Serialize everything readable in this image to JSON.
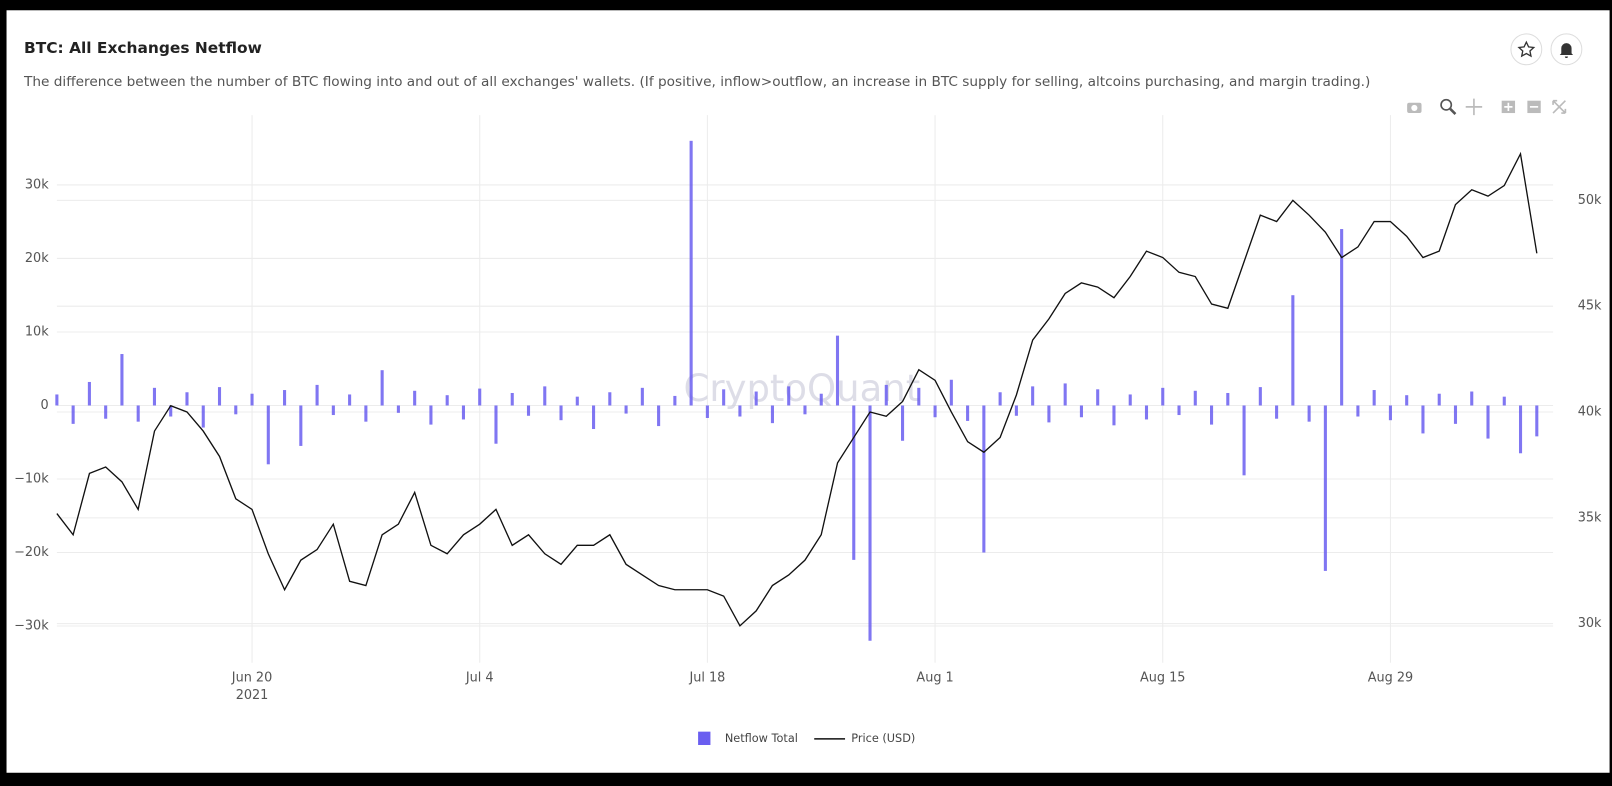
{
  "chart_data": {
    "type": "bar",
    "title": "BTC: All Exchanges Netflow",
    "subtitle": "The difference between the number of BTC flowing into and out of all exchanges' wallets. (If positive, inflow>outflow, an increase in BTC supply for selling, altcoins purchasing, and margin trading.)",
    "watermark": "CryptoQuant",
    "x": [
      "2021-06-08",
      "2021-06-09",
      "2021-06-10",
      "2021-06-11",
      "2021-06-12",
      "2021-06-13",
      "2021-06-14",
      "2021-06-15",
      "2021-06-16",
      "2021-06-17",
      "2021-06-18",
      "2021-06-19",
      "2021-06-20",
      "2021-06-21",
      "2021-06-22",
      "2021-06-23",
      "2021-06-24",
      "2021-06-25",
      "2021-06-26",
      "2021-06-27",
      "2021-06-28",
      "2021-06-29",
      "2021-06-30",
      "2021-07-01",
      "2021-07-02",
      "2021-07-03",
      "2021-07-04",
      "2021-07-05",
      "2021-07-06",
      "2021-07-07",
      "2021-07-08",
      "2021-07-09",
      "2021-07-10",
      "2021-07-11",
      "2021-07-12",
      "2021-07-13",
      "2021-07-14",
      "2021-07-15",
      "2021-07-16",
      "2021-07-17",
      "2021-07-18",
      "2021-07-19",
      "2021-07-20",
      "2021-07-21",
      "2021-07-22",
      "2021-07-23",
      "2021-07-24",
      "2021-07-25",
      "2021-07-26",
      "2021-07-27",
      "2021-07-28",
      "2021-07-29",
      "2021-07-30",
      "2021-07-31",
      "2021-08-01",
      "2021-08-02",
      "2021-08-03",
      "2021-08-04",
      "2021-08-05",
      "2021-08-06",
      "2021-08-07",
      "2021-08-08",
      "2021-08-09",
      "2021-08-10",
      "2021-08-11",
      "2021-08-12",
      "2021-08-13",
      "2021-08-14",
      "2021-08-15",
      "2021-08-16",
      "2021-08-17",
      "2021-08-18",
      "2021-08-19",
      "2021-08-20",
      "2021-08-21",
      "2021-08-22",
      "2021-08-23",
      "2021-08-24",
      "2021-08-25",
      "2021-08-26",
      "2021-08-27",
      "2021-08-28",
      "2021-08-29",
      "2021-08-30",
      "2021-08-31",
      "2021-09-01",
      "2021-09-02",
      "2021-09-03",
      "2021-09-04",
      "2021-09-05",
      "2021-09-06",
      "2021-09-07"
    ],
    "series": [
      {
        "name": "Netflow Total",
        "type": "bar",
        "color": "#6a5ef0",
        "values": [
          1500,
          -2500,
          3200,
          -1800,
          7000,
          -2200,
          2400,
          -1500,
          1800,
          -3000,
          2500,
          -1200,
          1600,
          -8000,
          2100,
          -5500,
          2800,
          -1300,
          1500,
          -2200,
          4800,
          -1000,
          2000,
          -2600,
          1400,
          -1900,
          2300,
          -5200,
          1700,
          -1400,
          2600,
          -2000,
          1200,
          -3200,
          1800,
          -1100,
          2400,
          -2800,
          1300,
          36000,
          -1700,
          2200,
          -1500,
          1900,
          -2400,
          2600,
          -1200,
          1600,
          9500,
          -21000,
          -32000,
          2800,
          -4800,
          2400,
          -1600,
          3500,
          -2100,
          -20000,
          1800,
          -1400,
          2600,
          -2300,
          3000,
          -1600,
          2200,
          -2700,
          1500,
          -1900,
          2400,
          -1300,
          2000,
          -2600,
          1700,
          -9500,
          2500,
          -1800,
          15000,
          -2200,
          -22500,
          24000,
          -1500,
          2100,
          -2000,
          1400,
          -3800,
          1600,
          -2500,
          1900,
          -4500,
          1200,
          -6500,
          -4200
        ]
      },
      {
        "name": "Price (USD)",
        "type": "line",
        "axis": "y2",
        "color": "#111111",
        "values": [
          35200,
          34200,
          37100,
          37400,
          36700,
          35400,
          39100,
          40300,
          40000,
          39100,
          37900,
          35900,
          35400,
          33300,
          31600,
          33000,
          33500,
          34700,
          32000,
          31800,
          34200,
          34700,
          36200,
          33700,
          33300,
          34200,
          34700,
          35400,
          33700,
          34200,
          33300,
          32800,
          33700,
          33700,
          34200,
          32800,
          32300,
          31800,
          31600,
          31600,
          31600,
          31300,
          29900,
          30600,
          31800,
          32300,
          33000,
          34200,
          37600,
          38800,
          40000,
          39800,
          40500,
          42000,
          41500,
          40000,
          38600,
          38100,
          38800,
          40800,
          43400,
          44400,
          45600,
          46100,
          45900,
          45400,
          46400,
          47600,
          47300,
          46600,
          46400,
          45100,
          44900,
          47100,
          49300,
          49000,
          50000,
          49300,
          48500,
          47300,
          47800,
          49000,
          49000,
          48300,
          47300,
          47600,
          49800,
          50500,
          50200,
          50700,
          52200,
          47500
        ]
      }
    ],
    "xlim": [
      "2021-06-08",
      "2021-09-08"
    ],
    "xticks": [
      {
        "value": "2021-06-20",
        "label": "Jun 20"
      },
      {
        "value": "2021-07-04",
        "label": "Jul 4"
      },
      {
        "value": "2021-07-18",
        "label": "Jul 18"
      },
      {
        "value": "2021-08-01",
        "label": "Aug 1"
      },
      {
        "value": "2021-08-15",
        "label": "Aug 15"
      },
      {
        "value": "2021-08-29",
        "label": "Aug 29"
      }
    ],
    "x_year": {
      "value": "2021-06-20",
      "label": "2021"
    },
    "ylim": [
      -35000,
      39500
    ],
    "yticks": [
      {
        "value": -30000,
        "label": "−30k"
      },
      {
        "value": -20000,
        "label": "−20k"
      },
      {
        "value": -10000,
        "label": "−10k"
      },
      0,
      {
        "value": 10000,
        "label": "10k"
      },
      {
        "value": 20000,
        "label": "20k"
      },
      {
        "value": 30000,
        "label": "30k"
      }
    ],
    "y2lim": [
      28150,
      54030
    ],
    "y2ticks": [
      {
        "value": 30000,
        "label": "30k"
      },
      {
        "value": 35000,
        "label": "35k"
      },
      {
        "value": 40000,
        "label": "40k"
      },
      {
        "value": 45000,
        "label": "45k"
      },
      {
        "value": 50000,
        "label": "50k"
      }
    ],
    "grid": true
  }
}
